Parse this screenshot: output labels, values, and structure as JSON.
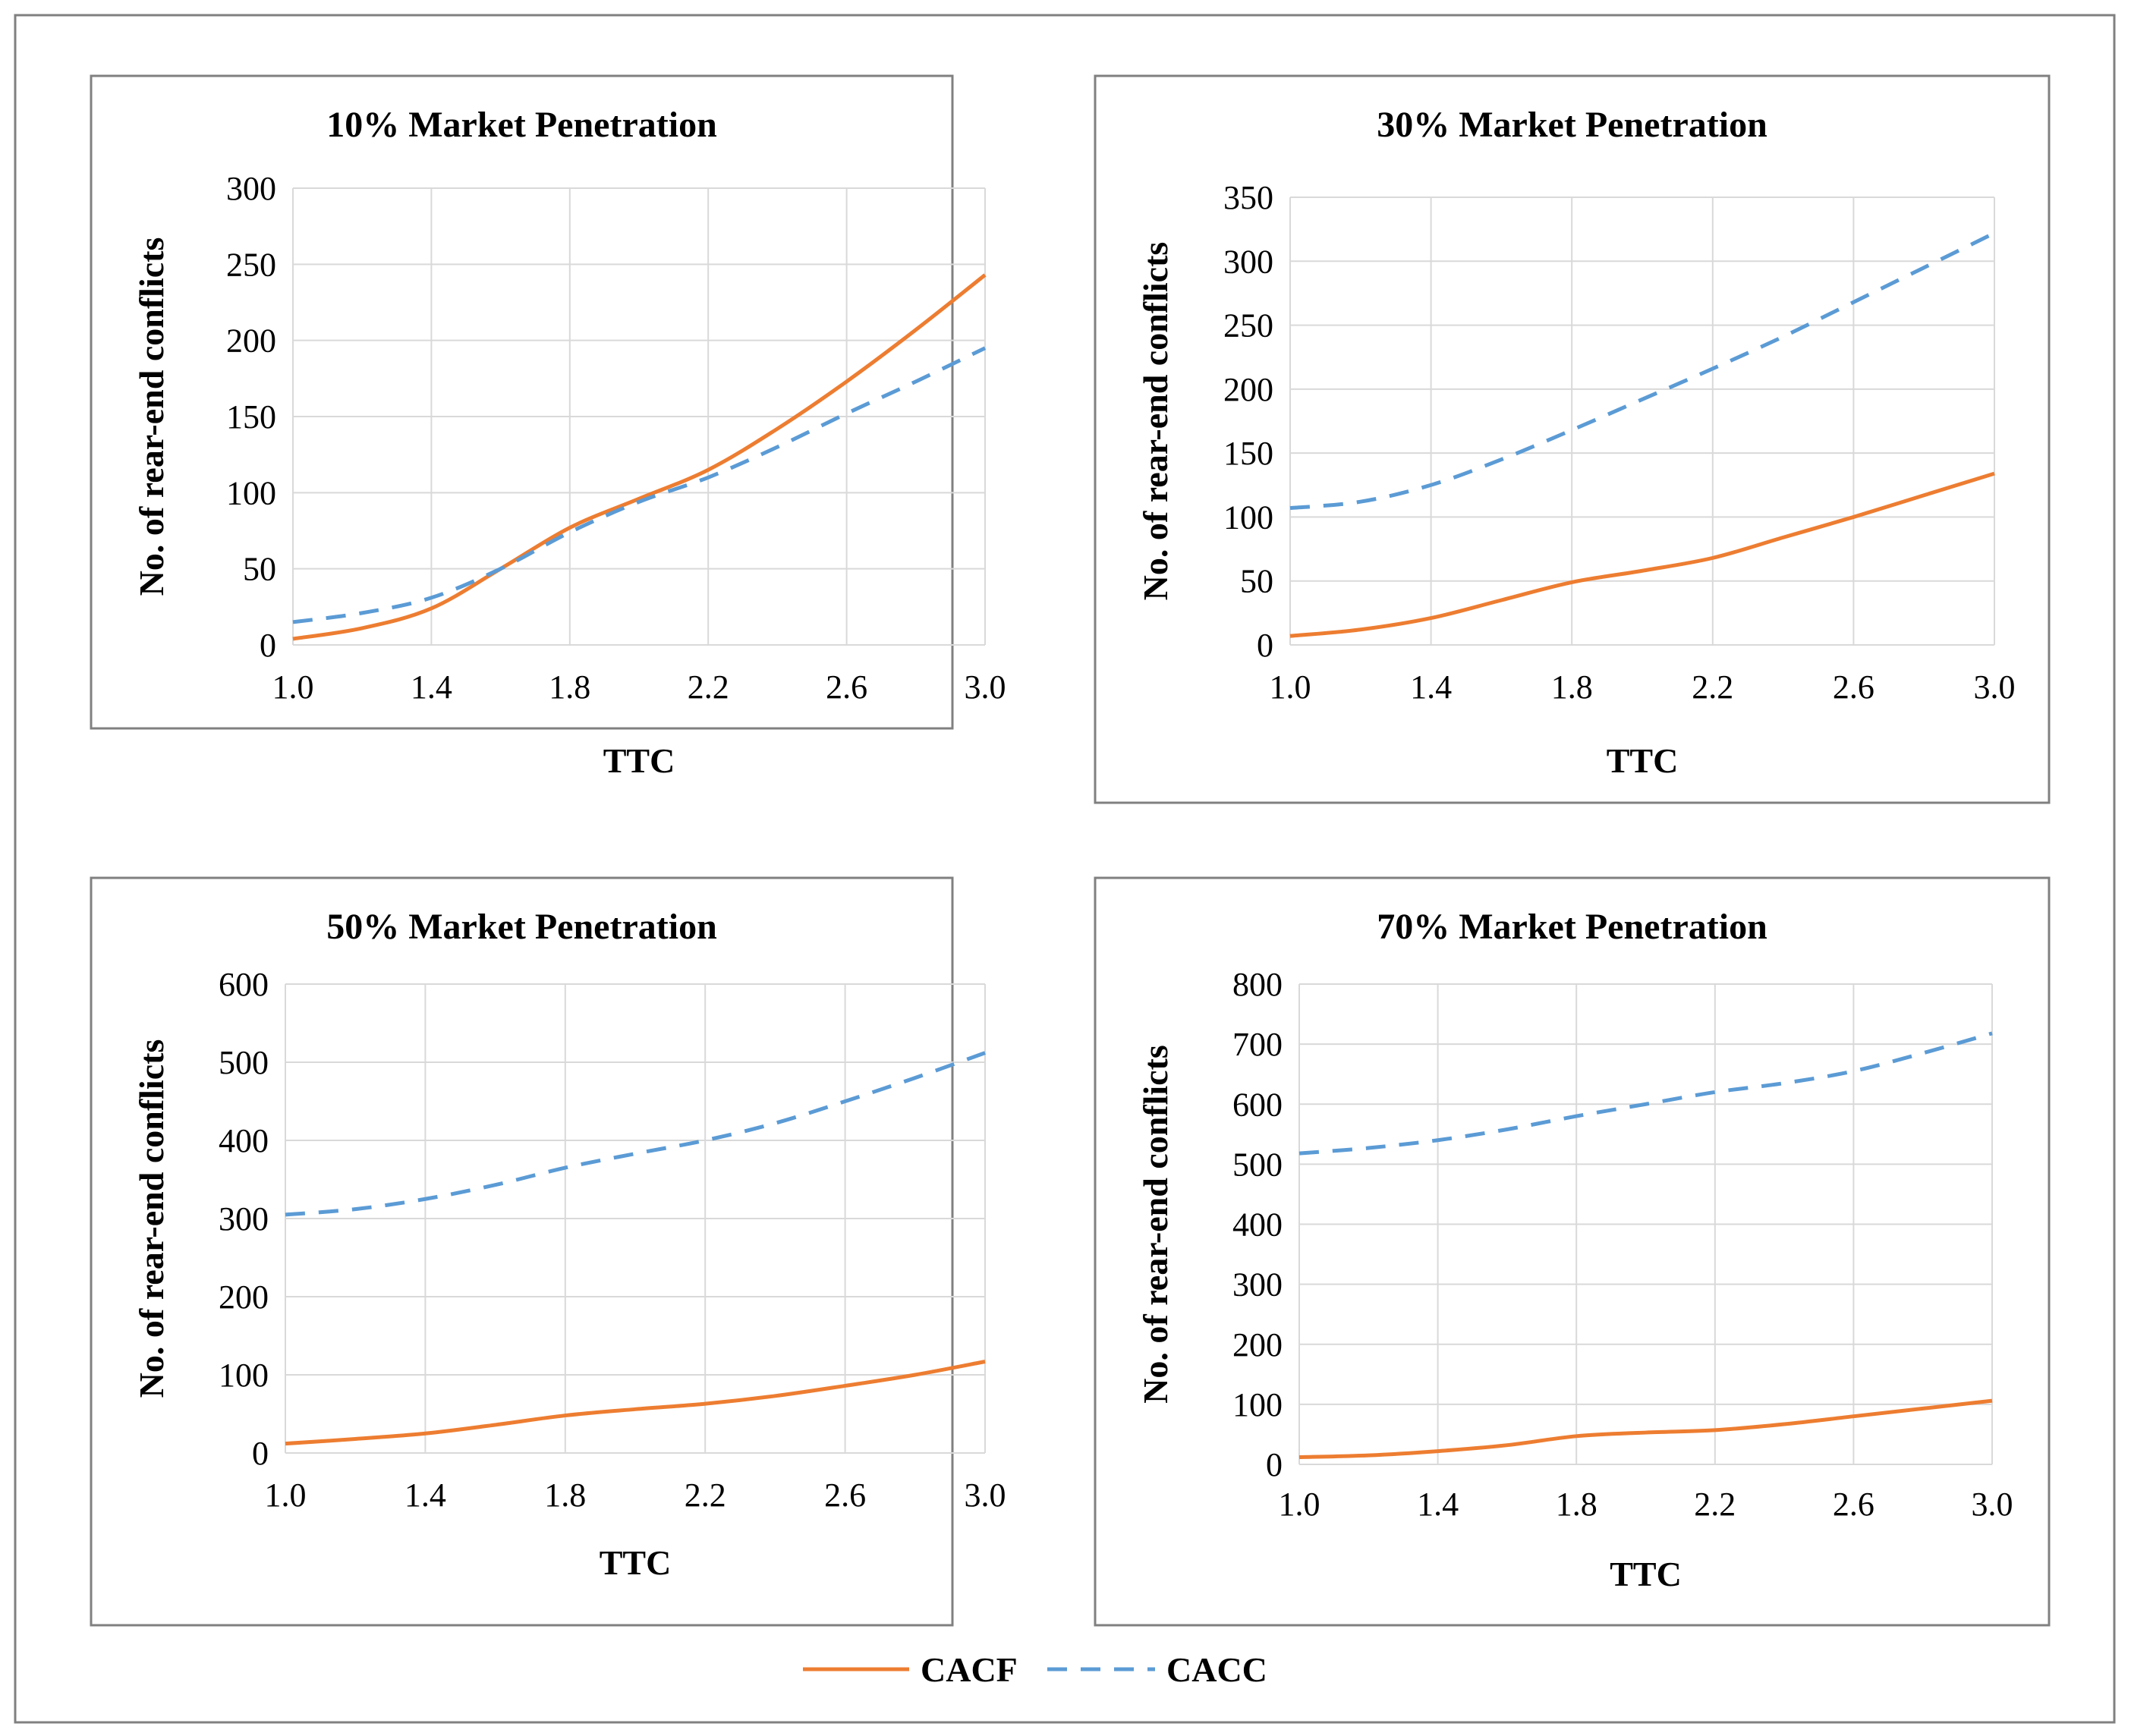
{
  "colors": {
    "CACF": "#ed7d31",
    "CACC": "#5b9bd5"
  },
  "legend": [
    {
      "name": "CACF",
      "style": "solid"
    },
    {
      "name": "CACC",
      "style": "dashed"
    }
  ],
  "chart_data": [
    {
      "type": "line",
      "title": "10% Market Penetration",
      "xlabel": "TTC",
      "ylabel": "No. of rear-end conflicts",
      "x": [
        1.0,
        1.2,
        1.4,
        1.6,
        1.8,
        2.0,
        2.2,
        2.4,
        2.6,
        2.8,
        3.0
      ],
      "xticks": [
        "1.0",
        "1.4",
        "1.8",
        "2.2",
        "2.6",
        "3.0"
      ],
      "yticks": [
        "0",
        "50",
        "100",
        "150",
        "200",
        "250",
        "300"
      ],
      "ylim": [
        0,
        300
      ],
      "series": [
        {
          "name": "CACF",
          "values": [
            4,
            11,
            24,
            50,
            77,
            96,
            115,
            142,
            173,
            207,
            243
          ]
        },
        {
          "name": "CACC",
          "values": [
            15,
            21,
            31,
            50,
            74,
            94,
            110,
            130,
            152,
            173,
            195
          ]
        }
      ]
    },
    {
      "type": "line",
      "title": "30% Market Penetration",
      "xlabel": "TTC",
      "ylabel": "No. of rear-end conflicts",
      "x": [
        1.0,
        1.2,
        1.4,
        1.6,
        1.8,
        2.0,
        2.2,
        2.4,
        2.6,
        2.8,
        3.0
      ],
      "xticks": [
        "1.0",
        "1.4",
        "1.8",
        "2.2",
        "2.6",
        "3.0"
      ],
      "yticks": [
        "0",
        "50",
        "100",
        "150",
        "200",
        "250",
        "300",
        "350"
      ],
      "ylim": [
        0,
        350
      ],
      "series": [
        {
          "name": "CACF",
          "values": [
            7,
            12,
            21,
            35,
            49,
            58,
            68,
            84,
            100,
            117,
            134
          ]
        },
        {
          "name": "CACC",
          "values": [
            107,
            112,
            125,
            145,
            168,
            192,
            216,
            241,
            268,
            295,
            322
          ]
        }
      ]
    },
    {
      "type": "line",
      "title": "50% Market Penetration",
      "xlabel": "TTC",
      "ylabel": "No. of rear-end conflicts",
      "x": [
        1.0,
        1.2,
        1.4,
        1.6,
        1.8,
        2.0,
        2.2,
        2.4,
        2.6,
        2.8,
        3.0
      ],
      "xticks": [
        "1.0",
        "1.4",
        "1.8",
        "2.2",
        "2.6",
        "3.0"
      ],
      "yticks": [
        "0",
        "100",
        "200",
        "300",
        "400",
        "500",
        "600"
      ],
      "ylim": [
        0,
        600
      ],
      "series": [
        {
          "name": "CACF",
          "values": [
            12,
            18,
            25,
            36,
            48,
            56,
            63,
            73,
            86,
            100,
            117
          ]
        },
        {
          "name": "CACC",
          "values": [
            305,
            312,
            325,
            343,
            365,
            383,
            400,
            422,
            450,
            480,
            512
          ]
        }
      ]
    },
    {
      "type": "line",
      "title": "70% Market Penetration",
      "xlabel": "TTC",
      "ylabel": "No. of rear-end conflicts",
      "x": [
        1.0,
        1.2,
        1.4,
        1.6,
        1.8,
        2.0,
        2.2,
        2.4,
        2.6,
        2.8,
        3.0
      ],
      "xticks": [
        "1.0",
        "1.4",
        "1.8",
        "2.2",
        "2.6",
        "3.0"
      ],
      "yticks": [
        "0",
        "100",
        "200",
        "300",
        "400",
        "500",
        "600",
        "700",
        "800"
      ],
      "ylim": [
        0,
        800
      ],
      "series": [
        {
          "name": "CACF",
          "values": [
            12,
            15,
            22,
            32,
            47,
            53,
            57,
            67,
            80,
            93,
            106
          ]
        },
        {
          "name": "CACC",
          "values": [
            518,
            527,
            540,
            558,
            580,
            600,
            620,
            635,
            655,
            685,
            718
          ]
        }
      ]
    }
  ]
}
